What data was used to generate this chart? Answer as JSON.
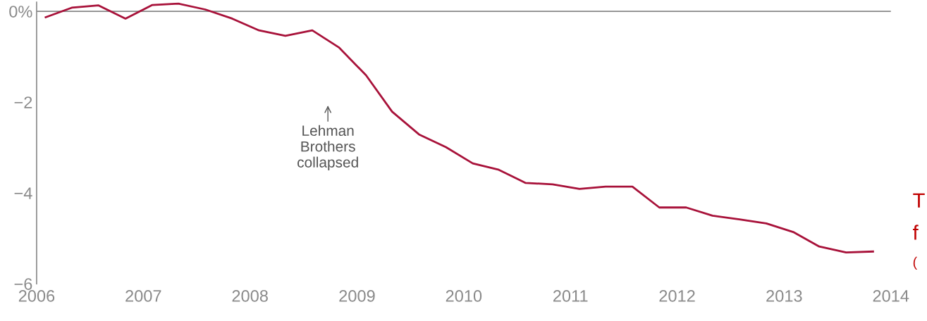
{
  "chart_data": {
    "type": "line",
    "x": [
      "2006-02",
      "2006-05",
      "2006-08",
      "2006-11",
      "2007-02",
      "2007-05",
      "2007-08",
      "2007-11",
      "2008-02",
      "2008-05",
      "2008-08",
      "2008-11",
      "2009-02",
      "2009-05",
      "2009-08",
      "2009-11",
      "2010-02",
      "2010-05",
      "2010-08",
      "2010-11",
      "2011-02",
      "2011-05",
      "2011-08",
      "2011-11",
      "2012-02",
      "2012-05",
      "2012-08",
      "2012-11",
      "2013-02",
      "2013-05",
      "2013-08",
      "2013-11"
    ],
    "series": [
      {
        "color": "#a8123a",
        "values": [
          -0.13,
          0.08,
          0.13,
          -0.16,
          0.14,
          0.17,
          0.04,
          -0.16,
          -0.42,
          -0.54,
          -0.42,
          -0.8,
          -1.41,
          -2.21,
          -2.71,
          -2.99,
          -3.35,
          -3.49,
          -3.78,
          -3.81,
          -3.91,
          -3.86,
          -3.86,
          -4.32,
          -4.32,
          -4.5,
          -4.58,
          -4.67,
          -4.86,
          -5.18,
          -5.31,
          -5.29
        ]
      }
    ],
    "xlim": [
      "2006",
      "2014"
    ],
    "xticks": [
      "2006",
      "2007",
      "2008",
      "2009",
      "2010",
      "2011",
      "2012",
      "2013",
      "2014"
    ],
    "ylim": [
      -6,
      0.2
    ],
    "yticks": [
      {
        "value": 0,
        "label": "0%"
      },
      {
        "value": -2,
        "label": "−2"
      },
      {
        "value": -4,
        "label": "−4"
      },
      {
        "value": -6,
        "label": "−6"
      }
    ],
    "ref_lines": [
      {
        "axis": "y",
        "value": 0,
        "color": "#888888"
      }
    ],
    "grid": false,
    "legend": false,
    "marker": "none",
    "line_style": "solid",
    "annotations": [
      "Lehman\nBrothers\ncollapsed",
      "T",
      "f",
      "("
    ]
  }
}
